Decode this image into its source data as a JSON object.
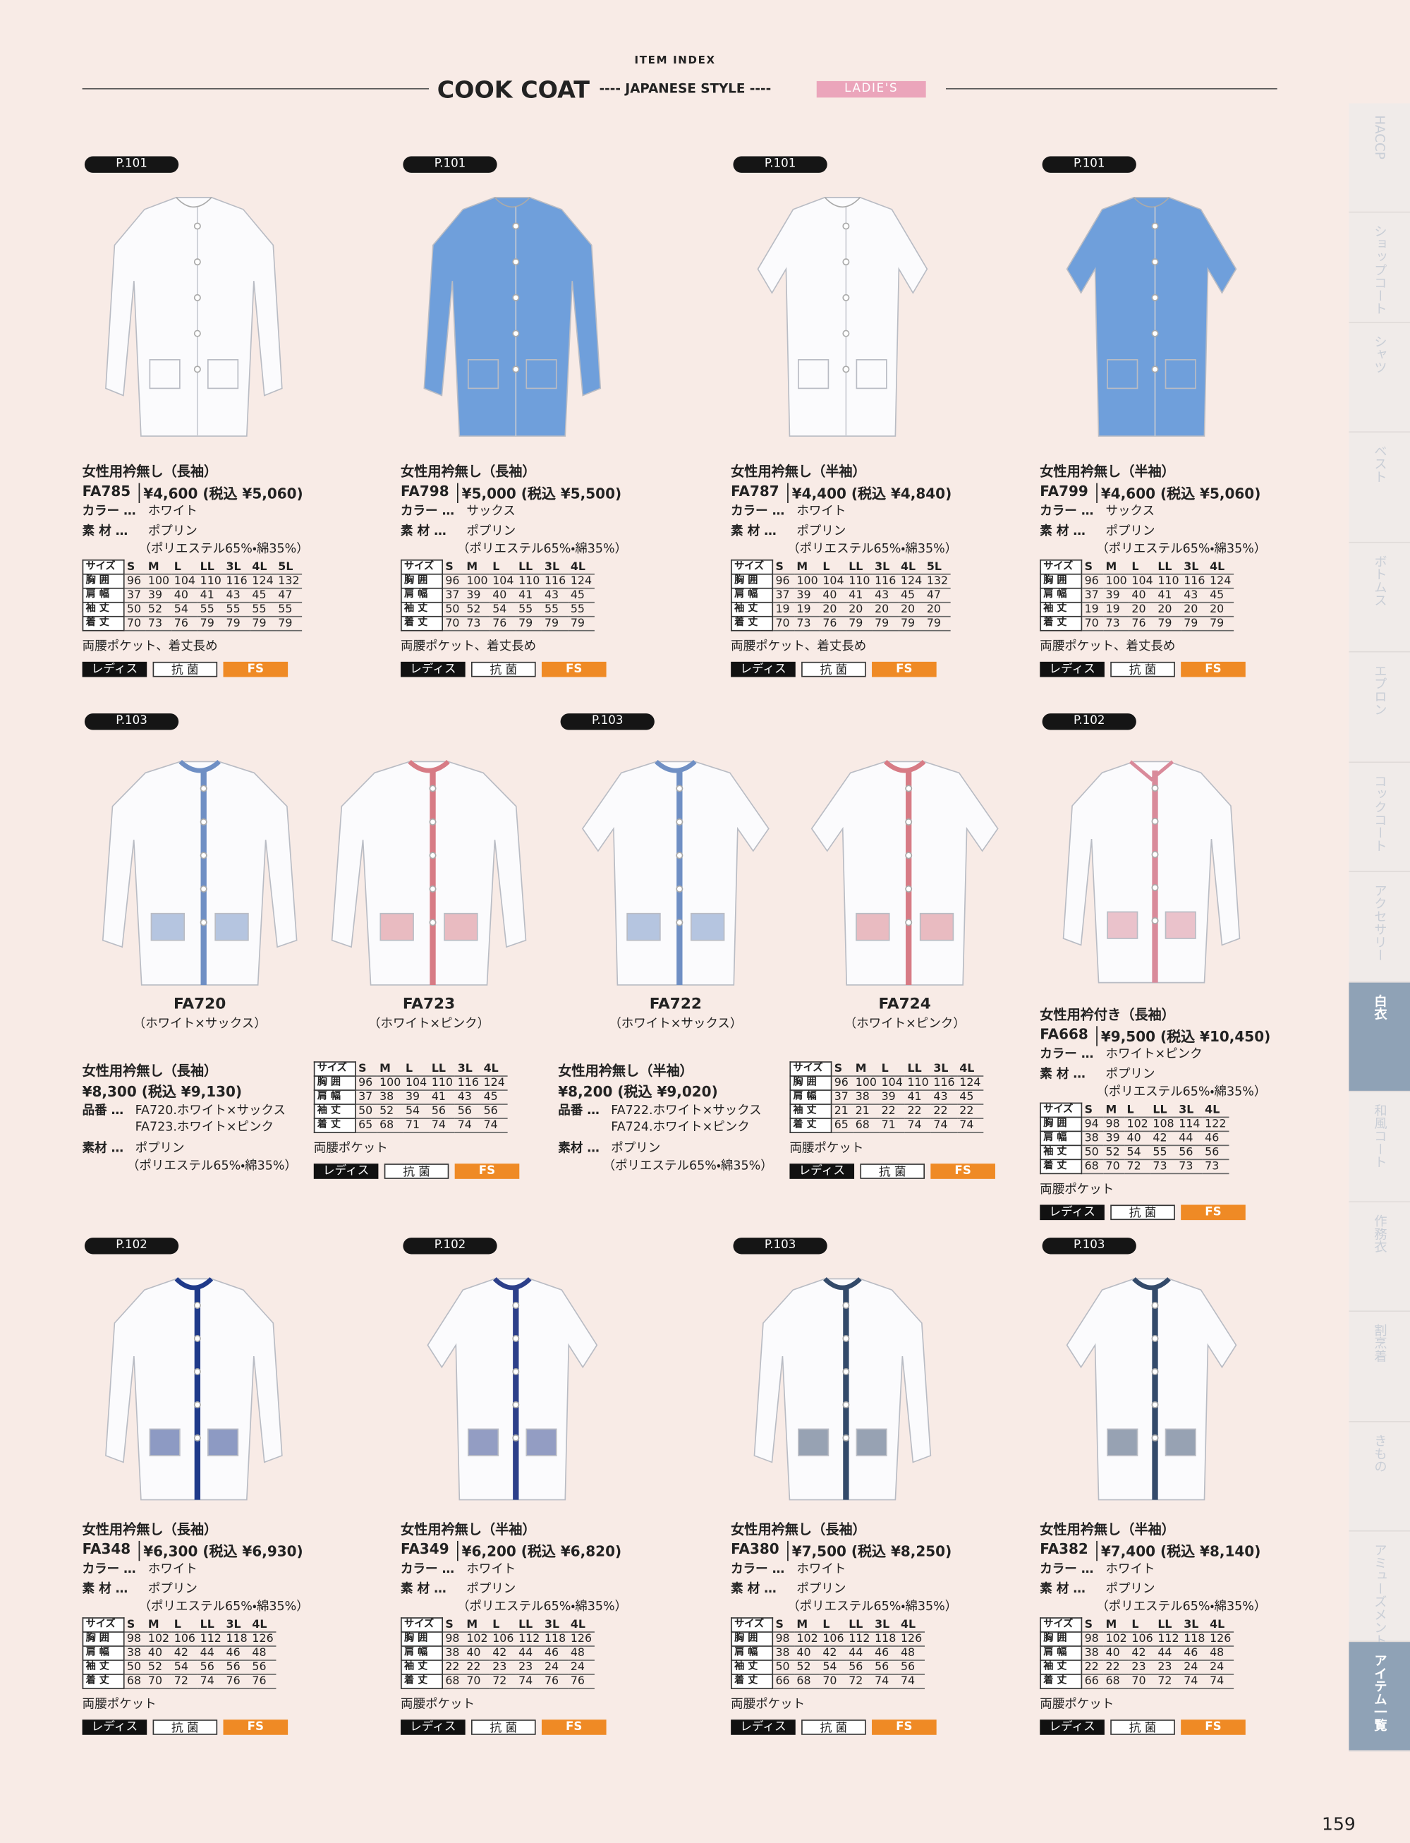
{
  "header": {
    "label": "ITEM INDEX",
    "title": "COOK COAT",
    "subtitle": "---- JAPANESE STYLE ----",
    "badge": "LADIE'S"
  },
  "side_tabs": [
    "HACCP",
    "ショップコート",
    "シャツ",
    "ベスト",
    "ボトムス",
    "エプロン",
    "コックコート",
    "アクセサリー",
    "白衣",
    "和風コート",
    "作務衣",
    "割烹着",
    "きもの",
    "アミューズメント",
    "アイテム一覧"
  ],
  "products": [
    {
      "page": "P.101",
      "name": "女性用衿無し（長袖）",
      "code": "FA785",
      "price": "¥4,600 (税込 ¥5,060)",
      "color_label": "カラー …",
      "color": "ホワイト",
      "material_label": "素 材 …",
      "material": "ポプリン",
      "material_detail": "（ポリエステル65%・綿35%）",
      "size_table": {
        "header": [
          "サイズ",
          "S",
          "M",
          "L",
          "LL",
          "3L",
          "4L",
          "5L"
        ],
        "rows": [
          [
            "胸 囲",
            96,
            100,
            104,
            110,
            116,
            124,
            132
          ],
          [
            "肩 幅",
            37,
            39,
            40,
            41,
            43,
            45,
            47
          ],
          [
            "袖 丈",
            50,
            52,
            54,
            55,
            55,
            55,
            55
          ],
          [
            "着 丈",
            70,
            73,
            76,
            79,
            79,
            79,
            79
          ]
        ]
      },
      "note": "両腰ポケット、着丈長め",
      "tags": [
        "レディス",
        "抗 菌",
        "FS"
      ]
    },
    {
      "page": "P.101",
      "name": "女性用衿無し（長袖）",
      "code": "FA798",
      "price": "¥5,000 (税込 ¥5,500)",
      "color_label": "カラー …",
      "color": "サックス",
      "material_label": "素 材 …",
      "material": "ポプリン",
      "material_detail": "（ポリエステル65%・綿35%）",
      "size_table": {
        "header": [
          "サイズ",
          "S",
          "M",
          "L",
          "LL",
          "3L",
          "4L"
        ],
        "rows": [
          [
            "胸 囲",
            96,
            100,
            104,
            110,
            116,
            124
          ],
          [
            "肩 幅",
            37,
            39,
            40,
            41,
            43,
            45
          ],
          [
            "袖 丈",
            50,
            52,
            54,
            55,
            55,
            55
          ],
          [
            "着 丈",
            70,
            73,
            76,
            79,
            79,
            79
          ]
        ]
      },
      "note": "両腰ポケット、着丈長め",
      "tags": [
        "レディス",
        "抗 菌",
        "FS"
      ]
    },
    {
      "page": "P.101",
      "name": "女性用衿無し（半袖）",
      "code": "FA787",
      "price": "¥4,400 (税込 ¥4,840)",
      "color_label": "カラー …",
      "color": "ホワイト",
      "material_label": "素 材 …",
      "material": "ポプリン",
      "material_detail": "（ポリエステル65%・綿35%）",
      "size_table": {
        "header": [
          "サイズ",
          "S",
          "M",
          "L",
          "LL",
          "3L",
          "4L",
          "5L"
        ],
        "rows": [
          [
            "胸 囲",
            96,
            100,
            104,
            110,
            116,
            124,
            132
          ],
          [
            "肩 幅",
            37,
            39,
            40,
            41,
            43,
            45,
            47
          ],
          [
            "袖 丈",
            19,
            19,
            20,
            20,
            20,
            20,
            20
          ],
          [
            "着 丈",
            70,
            73,
            76,
            79,
            79,
            79,
            79
          ]
        ]
      },
      "note": "両腰ポケット、着丈長め",
      "tags": [
        "レディス",
        "抗 菌",
        "FS"
      ]
    },
    {
      "page": "P.101",
      "name": "女性用衿無し（半袖）",
      "code": "FA799",
      "price": "¥4,600 (税込 ¥5,060)",
      "color_label": "カラー …",
      "color": "サックス",
      "material_label": "素 材 …",
      "material": "ポプリン",
      "material_detail": "（ポリエステル65%・綿35%）",
      "size_table": {
        "header": [
          "サイズ",
          "S",
          "M",
          "L",
          "LL",
          "3L",
          "4L"
        ],
        "rows": [
          [
            "胸 囲",
            96,
            100,
            104,
            110,
            116,
            124
          ],
          [
            "肩 幅",
            37,
            39,
            40,
            41,
            43,
            45
          ],
          [
            "袖 丈",
            19,
            19,
            20,
            20,
            20,
            20
          ],
          [
            "着 丈",
            70,
            73,
            76,
            79,
            79,
            79
          ]
        ]
      },
      "note": "両腰ポケット、着丈長め",
      "tags": [
        "レディス",
        "抗 菌",
        "FS"
      ]
    },
    {
      "page": "P.102",
      "name": "女性用衿付き（長袖）",
      "code": "FA668",
      "price": "¥9,500 (税込 ¥10,450)",
      "color_label": "カラー …",
      "color": "ホワイト×ピンク",
      "material_label": "素 材 …",
      "material": "ポプリン",
      "material_detail": "（ポリエステル65%・綿35%）",
      "size_table": {
        "header": [
          "サイズ",
          "S",
          "M",
          "L",
          "LL",
          "3L",
          "4L"
        ],
        "rows": [
          [
            "胸 囲",
            94,
            98,
            102,
            108,
            114,
            122
          ],
          [
            "肩 幅",
            38,
            39,
            40,
            42,
            44,
            46
          ],
          [
            "袖 丈",
            50,
            52,
            54,
            55,
            56,
            56
          ],
          [
            "着 丈",
            68,
            70,
            72,
            73,
            73,
            73
          ]
        ]
      },
      "note": "両腰ポケット",
      "tags": [
        "レディス",
        "抗 菌",
        "FS"
      ]
    },
    {
      "page": "P.102",
      "name": "女性用衿無し（長袖）",
      "code": "FA348",
      "price": "¥6,300 (税込 ¥6,930)",
      "color_label": "カラー …",
      "color": "ホワイト",
      "material_label": "素 材 …",
      "material": "ポプリン",
      "material_detail": "（ポリエステル65%・綿35%）",
      "size_table": {
        "header": [
          "サイズ",
          "S",
          "M",
          "L",
          "LL",
          "3L",
          "4L"
        ],
        "rows": [
          [
            "胸 囲",
            98,
            102,
            106,
            112,
            118,
            126
          ],
          [
            "肩 幅",
            38,
            40,
            42,
            44,
            46,
            48
          ],
          [
            "袖 丈",
            50,
            52,
            54,
            56,
            56,
            56
          ],
          [
            "着 丈",
            68,
            70,
            72,
            74,
            76,
            76
          ]
        ]
      },
      "note": "両腰ポケット",
      "tags": [
        "レディス",
        "抗 菌",
        "FS"
      ]
    },
    {
      "page": "P.102",
      "name": "女性用衿無し（半袖）",
      "code": "FA349",
      "price": "¥6,200 (税込 ¥6,820)",
      "color_label": "カラー …",
      "color": "ホワイト",
      "material_label": "素 材 …",
      "material": "ポプリン",
      "material_detail": "（ポリエステル65%・綿35%）",
      "size_table": {
        "header": [
          "サイズ",
          "S",
          "M",
          "L",
          "LL",
          "3L",
          "4L"
        ],
        "rows": [
          [
            "胸 囲",
            98,
            102,
            106,
            112,
            118,
            126
          ],
          [
            "肩 幅",
            38,
            40,
            42,
            44,
            46,
            48
          ],
          [
            "袖 丈",
            22,
            22,
            23,
            23,
            24,
            24
          ],
          [
            "着 丈",
            68,
            70,
            72,
            74,
            76,
            76
          ]
        ]
      },
      "note": "両腰ポケット",
      "tags": [
        "レディス",
        "抗 菌",
        "FS"
      ]
    },
    {
      "page": "P.103",
      "name": "女性用衿無し（長袖）",
      "code": "FA380",
      "price": "¥7,500 (税込 ¥8,250)",
      "color_label": "カラー …",
      "color": "ホワイト",
      "material_label": "素 材 …",
      "material": "ポプリン",
      "material_detail": "（ポリエステル65%・綿35%）",
      "size_table": {
        "header": [
          "サイズ",
          "S",
          "M",
          "L",
          "LL",
          "3L",
          "4L"
        ],
        "rows": [
          [
            "胸 囲",
            98,
            102,
            106,
            112,
            118,
            126
          ],
          [
            "肩 幅",
            38,
            40,
            42,
            44,
            46,
            48
          ],
          [
            "袖 丈",
            50,
            52,
            54,
            56,
            56,
            56
          ],
          [
            "着 丈",
            66,
            68,
            70,
            72,
            74,
            74
          ]
        ]
      },
      "note": "両腰ポケット",
      "tags": [
        "レディス",
        "抗 菌",
        "FS"
      ]
    },
    {
      "page": "P.103",
      "name": "女性用衿無し（半袖）",
      "code": "FA382",
      "price": "¥7,400 (税込 ¥8,140)",
      "color_label": "カラー …",
      "color": "ホワイト",
      "material_label": "素 材 …",
      "material": "ポプリン",
      "material_detail": "（ポリエステル65%・綿35%）",
      "size_table": {
        "header": [
          "サイズ",
          "S",
          "M",
          "L",
          "LL",
          "3L",
          "4L"
        ],
        "rows": [
          [
            "胸 囲",
            98,
            102,
            106,
            112,
            118,
            126
          ],
          [
            "肩 幅",
            38,
            40,
            42,
            44,
            46,
            48
          ],
          [
            "袖 丈",
            22,
            22,
            23,
            23,
            24,
            24
          ],
          [
            "着 丈",
            66,
            68,
            70,
            72,
            74,
            74
          ]
        ]
      },
      "note": "両腰ポケット",
      "tags": [
        "レディス",
        "抗 菌",
        "FS"
      ]
    }
  ],
  "groups": [
    {
      "page": "P.103",
      "items": [
        {
          "code": "FA720",
          "color": "（ホワイト×サックス）"
        },
        {
          "code": "FA723",
          "color": "（ホワイト×ピンク）"
        }
      ],
      "name": "女性用衿無し（長袖）",
      "price": "¥8,300 (税込 ¥9,130)",
      "part_label": "品番 …",
      "parts": [
        "FA720.ホワイト×サックス",
        "FA723.ホワイト×ピンク"
      ],
      "material_label": "素材 …",
      "material": "ポプリン",
      "material_detail": "（ポリエステル65%・綿35%）",
      "size_table": {
        "header": [
          "サイズ",
          "S",
          "M",
          "L",
          "LL",
          "3L",
          "4L"
        ],
        "rows": [
          [
            "胸 囲",
            96,
            100,
            104,
            110,
            116,
            124
          ],
          [
            "肩 幅",
            37,
            38,
            39,
            41,
            43,
            45
          ],
          [
            "袖 丈",
            50,
            52,
            54,
            56,
            56,
            56
          ],
          [
            "着 丈",
            65,
            68,
            71,
            74,
            74,
            74
          ]
        ]
      },
      "note": "両腰ポケット",
      "tags": [
        "レディス",
        "抗 菌",
        "FS"
      ]
    },
    {
      "page": "P.103",
      "items": [
        {
          "code": "FA722",
          "color": "（ホワイト×サックス）"
        },
        {
          "code": "FA724",
          "color": "（ホワイト×ピンク）"
        }
      ],
      "name": "女性用衿無し（半袖）",
      "price": "¥8,200 (税込 ¥9,020)",
      "part_label": "品番 …",
      "parts": [
        "FA722.ホワイト×サックス",
        "FA724.ホワイト×ピンク"
      ],
      "material_label": "素材 …",
      "material": "ポプリン",
      "material_detail": "（ポリエステル65%・綿35%）",
      "size_table": {
        "header": [
          "サイズ",
          "S",
          "M",
          "L",
          "LL",
          "3L",
          "4L"
        ],
        "rows": [
          [
            "胸 囲",
            96,
            100,
            104,
            110,
            116,
            124
          ],
          [
            "肩 幅",
            37,
            38,
            39,
            41,
            43,
            45
          ],
          [
            "袖 丈",
            21,
            21,
            22,
            22,
            22,
            22
          ],
          [
            "着 丈",
            65,
            68,
            71,
            74,
            74,
            74
          ]
        ]
      },
      "note": "両腰ポケット",
      "tags": [
        "レディス",
        "抗 菌",
        "FS"
      ]
    }
  ],
  "page_number": "159"
}
